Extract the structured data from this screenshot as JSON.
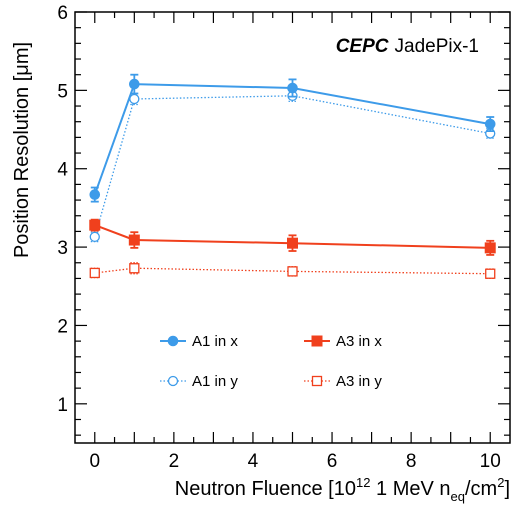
{
  "chart_data": {
    "type": "scatter",
    "brand": {
      "bold": "CEPC",
      "rest": "JadePix-1"
    },
    "xlabel": {
      "main": "Neutron Fluence [10",
      "exp1": "12",
      "mid": " 1 MeV n",
      "sub": "eq",
      "mid2": "/cm",
      "exp2": "2",
      "end": "]"
    },
    "ylabel": "Position Resolution [μm]",
    "xlim": [
      -0.5,
      10.5
    ],
    "ylim": [
      0.5,
      6
    ],
    "xticks": [
      0,
      2,
      4,
      6,
      8,
      10
    ],
    "yticks": [
      1,
      2,
      3,
      4,
      5,
      6
    ],
    "grid": false,
    "legend_position": "bottom-center",
    "series": [
      {
        "name": "A1 in x",
        "color": "#3d9be9",
        "marker": "circle-filled",
        "line": "solid",
        "x": [
          0,
          1,
          5,
          10
        ],
        "y": [
          3.67,
          5.08,
          5.03,
          4.57
        ],
        "err": [
          0.09,
          0.12,
          0.11,
          0.09
        ]
      },
      {
        "name": "A1 in y",
        "color": "#3d9be9",
        "marker": "circle-open",
        "line": "dotted",
        "x": [
          0,
          1,
          5,
          10
        ],
        "y": [
          3.13,
          4.89,
          4.93,
          4.45
        ],
        "err": [
          0.06,
          0.07,
          0.07,
          0.06
        ]
      },
      {
        "name": "A3 in x",
        "color": "#f0401d",
        "marker": "square-filled",
        "line": "solid",
        "x": [
          0,
          1,
          5,
          10
        ],
        "y": [
          3.28,
          3.09,
          3.05,
          2.99
        ],
        "err": [
          0.07,
          0.1,
          0.1,
          0.09
        ]
      },
      {
        "name": "A3 in y",
        "color": "#f0401d",
        "marker": "square-open",
        "line": "dotted",
        "x": [
          0,
          1,
          5,
          10
        ],
        "y": [
          2.67,
          2.73,
          2.69,
          2.66
        ],
        "err": [
          0.06,
          0.07,
          0.06,
          0.06
        ]
      }
    ]
  }
}
